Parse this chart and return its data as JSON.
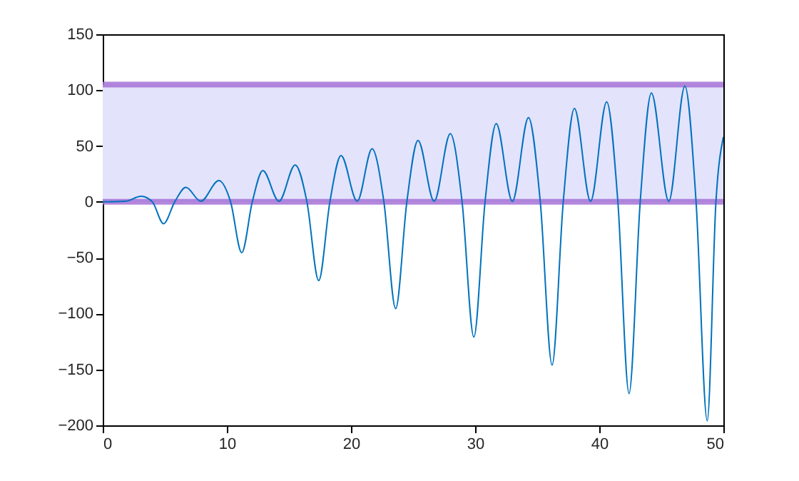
{
  "chart_data": {
    "type": "line",
    "xlim": [
      0,
      50
    ],
    "ylim": [
      -200,
      150
    ],
    "xticks": [
      0,
      10,
      20,
      30,
      40,
      50
    ],
    "yticks": [
      -200,
      -150,
      -100,
      -50,
      0,
      50,
      100,
      150
    ],
    "grid": false,
    "series": [
      {
        "color": "#0072bd",
        "x": [
          0,
          1.8,
          3.1,
          4.0,
          4.9,
          5.8,
          6.7,
          7.9,
          9.35,
          10.3,
          11.2,
          12.05,
          12.9,
          14.2,
          15.5,
          16.45,
          17.4,
          18.3,
          19.2,
          20.5,
          21.7,
          22.65,
          23.6,
          24.5,
          25.4,
          26.7,
          28.0,
          28.95,
          29.9,
          30.8,
          31.7,
          33.0,
          34.3,
          35.25,
          36.2,
          37.1,
          38.0,
          39.3,
          40.6,
          41.5,
          42.4,
          43.3,
          44.2,
          45.6,
          46.9,
          47.8,
          48.7,
          49.4,
          50
        ],
        "values": [
          0,
          0.5,
          5,
          0,
          -19.5,
          0,
          13,
          0.5,
          19,
          0,
          -45.5,
          0,
          28,
          0.5,
          33,
          0,
          -70.5,
          0,
          41.5,
          0.5,
          47.5,
          0,
          -95.5,
          0,
          55,
          0.5,
          61,
          0,
          -121,
          0,
          70,
          0.5,
          75.5,
          0,
          -146,
          0,
          83.5,
          0.5,
          89.5,
          0,
          -171.5,
          0,
          97.5,
          0.5,
          103.5,
          0,
          -196,
          0,
          58
        ]
      }
    ],
    "bands": [
      {
        "axis": "y",
        "from": 0,
        "to": 105,
        "color": "#e3e3fc"
      }
    ],
    "ref_lines": [
      {
        "axis": "y",
        "value": 0,
        "color": "#a472d6"
      },
      {
        "axis": "y",
        "value": 105,
        "color": "#a472d6"
      }
    ]
  }
}
